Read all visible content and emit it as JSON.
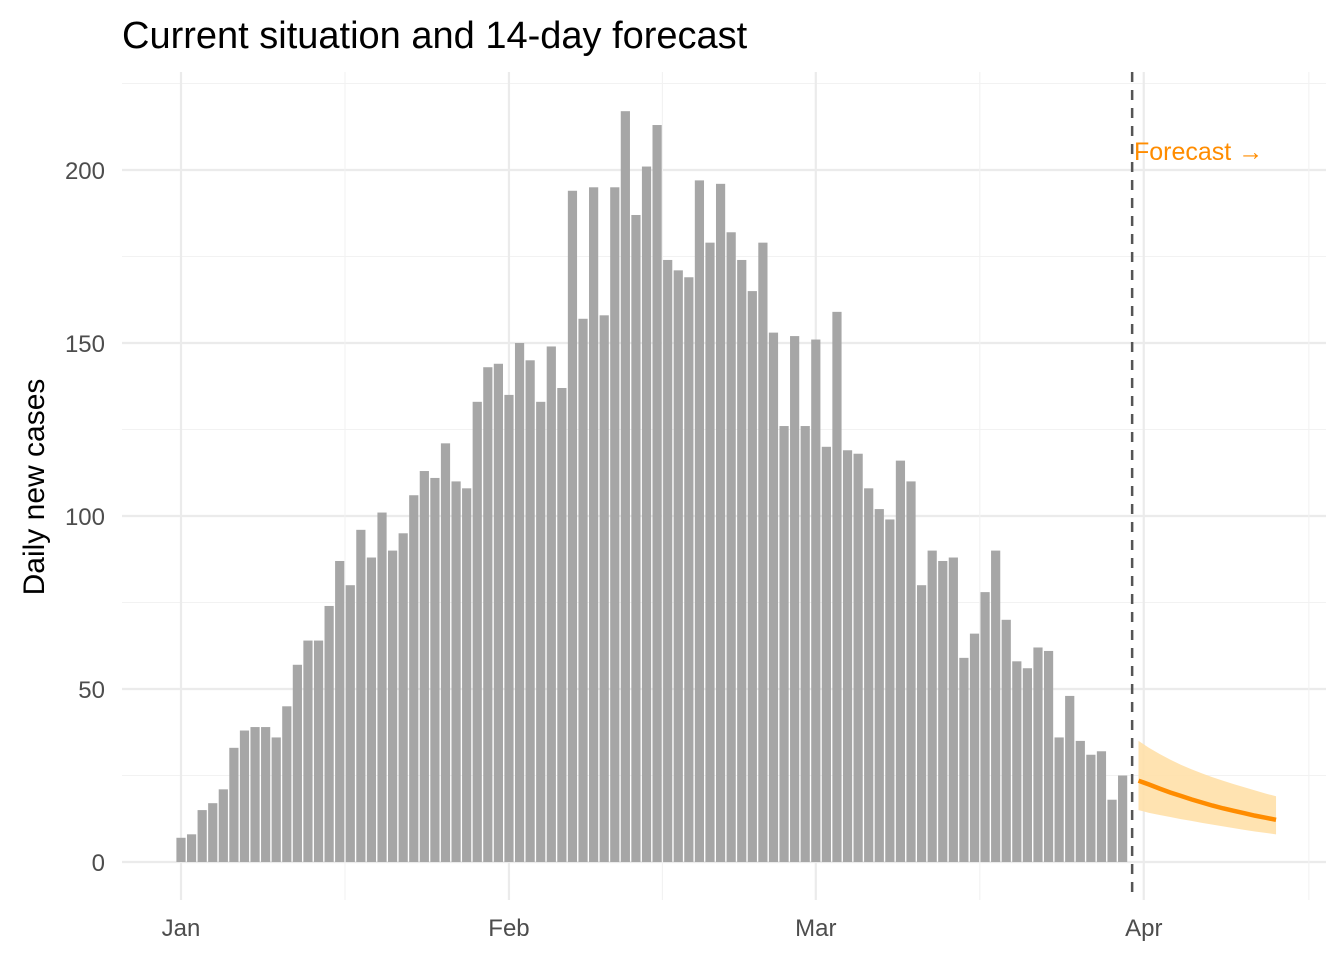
{
  "chart_data": {
    "type": "bar",
    "title": "Current situation and 14-day forecast",
    "xlabel": "",
    "ylabel": "Daily new cases",
    "ylim": [
      0,
      225
    ],
    "y_ticks": [
      0,
      50,
      100,
      150,
      200
    ],
    "x_tick_labels": [
      "Jan",
      "Feb",
      "Mar",
      "Apr"
    ],
    "x_tick_day_index": [
      0,
      31,
      60,
      91
    ],
    "grid": true,
    "start_date": "Jan 1",
    "bar_color": "#a6a6a6",
    "observed": [
      7,
      8,
      15,
      17,
      21,
      33,
      38,
      39,
      39,
      36,
      45,
      57,
      64,
      64,
      74,
      87,
      80,
      96,
      88,
      101,
      90,
      95,
      106,
      113,
      111,
      121,
      110,
      108,
      133,
      143,
      144,
      135,
      150,
      145,
      133,
      149,
      137,
      194,
      157,
      195,
      158,
      195,
      217,
      187,
      201,
      213,
      174,
      171,
      169,
      197,
      179,
      196,
      182,
      174,
      165,
      179,
      153,
      126,
      152,
      126,
      151,
      120,
      159,
      119,
      118,
      108,
      102,
      99,
      116,
      110,
      80,
      90,
      87,
      88,
      59,
      66,
      78,
      90,
      70,
      58,
      56,
      62,
      61,
      36,
      48,
      35,
      31,
      32,
      18,
      25
    ],
    "forecast_start_day_index": 90,
    "forecast_line_day_index": 89.9,
    "forecast": {
      "color": "#ff8c00",
      "band_color": "#ffe0a8",
      "mean": [
        23.5,
        22.4,
        21.2,
        20.1,
        19.1,
        18.1,
        17.2,
        16.3,
        15.5,
        14.8,
        14.1,
        13.4,
        12.8,
        12.2
      ],
      "lower": [
        15.0,
        14.2,
        13.6,
        13.0,
        12.4,
        11.9,
        11.3,
        10.8,
        10.3,
        9.8,
        9.3,
        8.8,
        8.4,
        8.0
      ],
      "upper": [
        35.0,
        33.0,
        31.2,
        29.6,
        28.1,
        26.8,
        25.6,
        24.5,
        23.5,
        22.5,
        21.6,
        20.7,
        19.8,
        19.0
      ]
    },
    "annotation": "Forecast →"
  }
}
